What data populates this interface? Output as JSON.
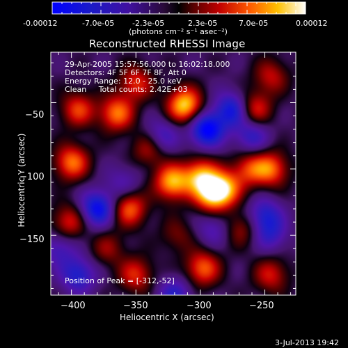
{
  "colors": {
    "background": "#000000",
    "text": "#ffffff"
  },
  "colorbar": {
    "tick_labels": [
      "-0.00012",
      "-7.0e-05",
      "-2.3e-05",
      "2.3e-05",
      "7.0e-05",
      "0.00012"
    ],
    "unit_label": "(photons cm⁻² s⁻¹ asec⁻²)",
    "range": [
      -0.00012,
      0.00012
    ],
    "colormap": "blue-purple-red-yellow-white"
  },
  "chart_data": {
    "type": "heatmap",
    "title": "Reconstructed RHESSI Image",
    "xlabel": "Heliocentric X (arcsec)",
    "ylabel": "Heliocentric Y (arcsec)",
    "xlim": [
      -416,
      -226
    ],
    "ylim": [
      -195,
      -12
    ],
    "x_ticks": [
      -400,
      -350,
      -300,
      -250
    ],
    "y_ticks": [
      -50,
      -100,
      -150
    ],
    "x_tick_labels": [
      "−400",
      "−350",
      "−300",
      "−250"
    ],
    "y_tick_labels": [
      "−50",
      "−100",
      "−150"
    ],
    "annotations": [
      "29-Apr-2005 15:57:56.000 to 16:02:18.000",
      "Detectors: 4F 5F 6F 7F 8F, Att 0",
      "Energy Range: 12.0 - 25.0 keV",
      "Clean     Total counts: 2.42E+03"
    ],
    "peak_label": "Position of Peak = [-312,-52]",
    "peak_position": [
      -312,
      -52
    ],
    "blobs": [
      {
        "x": -312,
        "y": -52,
        "v": 1.0
      },
      {
        "x": -365,
        "y": -58,
        "v": 0.75
      },
      {
        "x": -395,
        "y": -55,
        "v": 0.6
      },
      {
        "x": -350,
        "y": -35,
        "v": 0.55
      },
      {
        "x": -258,
        "y": -55,
        "v": 0.6
      },
      {
        "x": -245,
        "y": -30,
        "v": 0.45
      },
      {
        "x": -400,
        "y": -95,
        "v": 0.75
      },
      {
        "x": -340,
        "y": -85,
        "v": 0.45
      },
      {
        "x": -322,
        "y": -110,
        "v": 0.9
      },
      {
        "x": -300,
        "y": -105,
        "v": 0.8
      },
      {
        "x": -292,
        "y": -120,
        "v": 0.75
      },
      {
        "x": -282,
        "y": -115,
        "v": 0.85
      },
      {
        "x": -262,
        "y": -100,
        "v": 0.55
      },
      {
        "x": -245,
        "y": -100,
        "v": 0.7
      },
      {
        "x": -355,
        "y": -130,
        "v": 0.7
      },
      {
        "x": -402,
        "y": -140,
        "v": 0.55
      },
      {
        "x": -350,
        "y": -180,
        "v": 0.55
      },
      {
        "x": -298,
        "y": -175,
        "v": 0.7
      },
      {
        "x": -245,
        "y": -180,
        "v": 0.5
      },
      {
        "x": -372,
        "y": -160,
        "v": 0.35
      },
      {
        "x": -268,
        "y": -145,
        "v": 0.4
      },
      {
        "x": -318,
        "y": -150,
        "v": 0.3
      },
      {
        "x": -295,
        "y": -70,
        "v": -0.9
      },
      {
        "x": -275,
        "y": -55,
        "v": -0.7
      },
      {
        "x": -380,
        "y": -130,
        "v": -0.8
      },
      {
        "x": -260,
        "y": -75,
        "v": -0.5
      },
      {
        "x": -330,
        "y": -75,
        "v": -0.45
      },
      {
        "x": -395,
        "y": -180,
        "v": -0.6
      },
      {
        "x": -250,
        "y": -135,
        "v": -0.55
      },
      {
        "x": -320,
        "y": -195,
        "v": -0.5
      },
      {
        "x": -245,
        "y": -150,
        "v": -0.4
      },
      {
        "x": -360,
        "y": -110,
        "v": -0.3
      },
      {
        "x": -410,
        "y": -160,
        "v": -0.4
      },
      {
        "x": -290,
        "y": -145,
        "v": -0.35
      }
    ]
  },
  "footer": {
    "date": "3-Jul-2013 19:42"
  }
}
